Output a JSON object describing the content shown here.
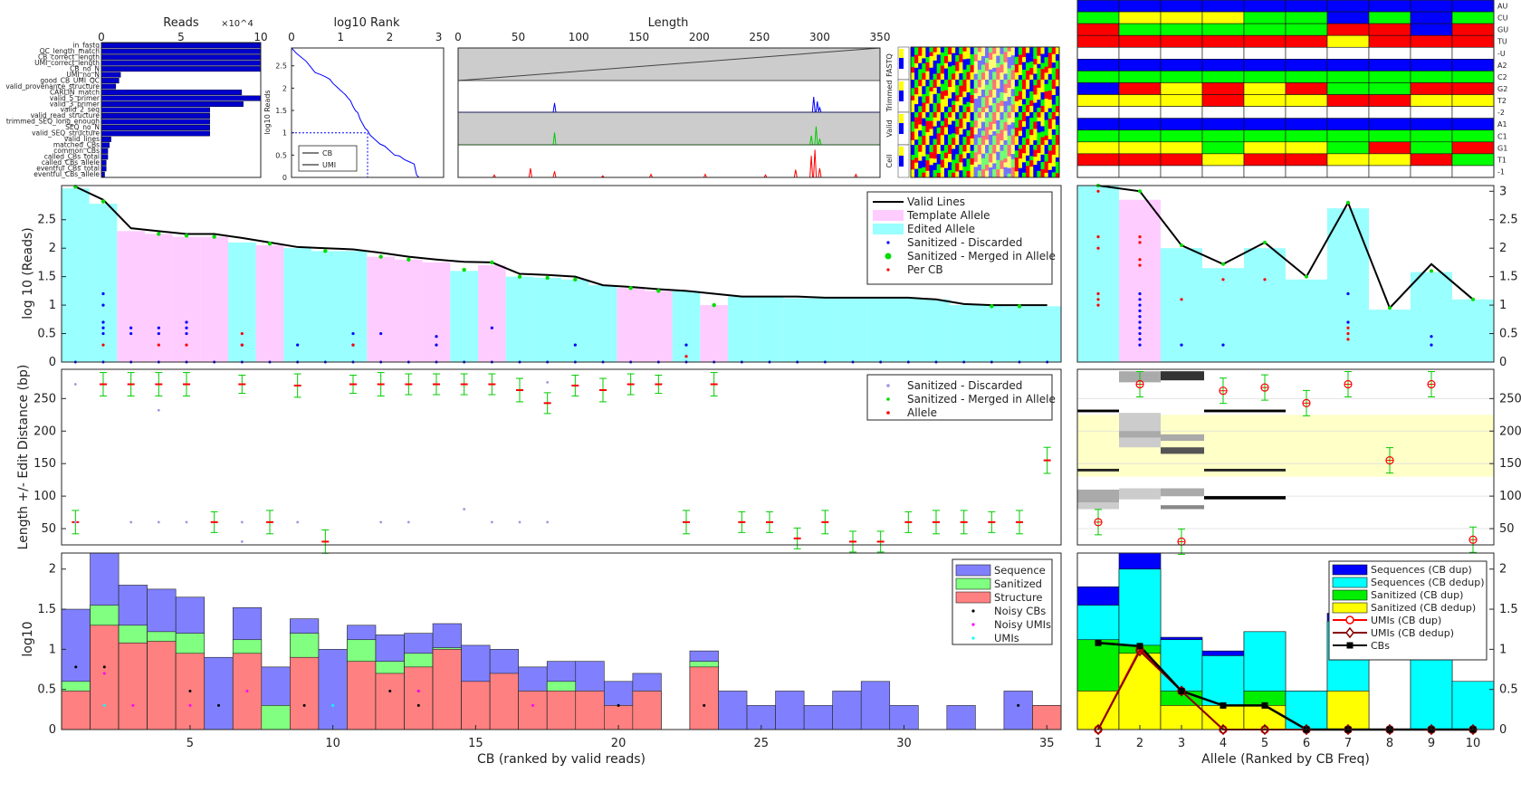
{
  "colors": {
    "cyan": "#99ffff",
    "pink": "#ffccff",
    "navy": "#0000ff",
    "green": "#00ff00",
    "red": "#ff0000",
    "blueBar": "#0000cc",
    "seq": "#8080ff",
    "san": "#80ff80",
    "str": "#ff8080",
    "gray": "#cccccc",
    "yellowBand": "#ffffc8"
  },
  "panel_reads": {
    "title": "Reads",
    "scale": "×10^4",
    "xticks": [
      0,
      5,
      10
    ],
    "xlim": [
      0,
      10
    ],
    "labels": [
      "in_fastq",
      "QC_length_match",
      "CB_correct_length",
      "UMI_correct_length",
      "CB_no_N",
      "UMI_no_N",
      "good_CB_UMI_QC",
      "valid_provenance_structure",
      "CARLIN_match",
      "valid_5_primer",
      "valid_3_primer",
      "valid_2_seq",
      "valid_read_structure",
      "trimmed_SEQ_long_enough",
      "SEQ_no_N",
      "valid_SEQ_structure",
      "valid_lines",
      "matched_CBs",
      "common_CBs",
      "called_CBs_total",
      "called_CBs_allele",
      "eventful_CBs_total",
      "eventful_CBs_allele"
    ],
    "values": [
      10,
      10,
      10,
      10,
      10,
      1.2,
      1.1,
      0.9,
      8.8,
      10,
      8.9,
      6.8,
      6.8,
      6.8,
      6.8,
      6.8,
      0.6,
      0.5,
      0.4,
      0.4,
      0.3,
      0.3,
      0.2
    ]
  },
  "panel_rank": {
    "title": "log10 Rank",
    "ylabel": "log10 Reads",
    "xticks": [
      0,
      1,
      2,
      3
    ],
    "yticks": [
      0,
      0.5,
      1,
      1.5,
      2,
      2.5
    ],
    "xlim": [
      0,
      3.1
    ],
    "ylim": [
      0,
      2.9
    ],
    "legend": [
      "CB",
      "UMI"
    ],
    "cb_x": [
      0,
      0.1,
      0.3,
      0.48,
      0.6,
      0.7,
      0.78,
      0.85,
      0.9,
      0.95,
      1.0,
      1.05,
      1.1,
      1.15,
      1.2,
      1.25,
      1.3,
      1.35,
      1.4,
      1.45,
      1.5,
      1.55,
      1.6,
      1.7,
      1.8,
      1.9,
      2.0,
      2.1,
      2.2,
      2.3,
      2.4,
      2.5,
      2.55,
      2.6,
      2.8,
      3.0
    ],
    "cb_y": [
      2.9,
      2.78,
      2.6,
      2.35,
      2.3,
      2.25,
      2.2,
      2.1,
      2.05,
      2.0,
      1.95,
      1.9,
      1.85,
      1.78,
      1.72,
      1.6,
      1.5,
      1.45,
      1.3,
      1.2,
      1.1,
      1.05,
      0.95,
      0.85,
      0.75,
      0.7,
      0.6,
      0.5,
      0.48,
      0.4,
      0.35,
      0.3,
      0.05,
      0,
      0,
      0
    ],
    "threshold_x": 1.55,
    "threshold_y": 1.0
  },
  "panel_length": {
    "title": "Length",
    "xticks": [
      0,
      50,
      100,
      150,
      200,
      250,
      300,
      350
    ],
    "xlim": [
      0,
      350
    ],
    "side_labels": [
      "FASTQ",
      "Trimmed",
      "Valid",
      "Cell"
    ],
    "spikes_a": [
      [
        80,
        0.3
      ],
      [
        295,
        0.5
      ],
      [
        298,
        0.35
      ],
      [
        300,
        0.15
      ]
    ],
    "spikes_b": [
      [
        80,
        0.4
      ],
      [
        293,
        0.3
      ],
      [
        297,
        0.6
      ],
      [
        300,
        0.2
      ]
    ],
    "spikes_c": [
      [
        30,
        0.08
      ],
      [
        60,
        0.3
      ],
      [
        80,
        0.2
      ],
      [
        120,
        0.05
      ],
      [
        160,
        0.1
      ],
      [
        205,
        0.1
      ],
      [
        255,
        0.08
      ],
      [
        280,
        0.25
      ],
      [
        293,
        0.7
      ],
      [
        296,
        0.9
      ],
      [
        300,
        0.3
      ],
      [
        330,
        0.1
      ]
    ]
  },
  "allele_matrix": {
    "row_labels": [
      "AU",
      "CU",
      "GU",
      "TU",
      "-U",
      "A2",
      "C2",
      "G2",
      "T2",
      "-2",
      "A1",
      "C1",
      "G1",
      "T1",
      "-1"
    ]
  },
  "main_top": {
    "ylabel": "log 10 (Reads)",
    "yticks": [
      0,
      0.5,
      1,
      1.5,
      2,
      2.5
    ],
    "ylim": [
      0,
      3.1
    ],
    "legend": [
      "Valid Lines",
      "Template Allele",
      "Edited Allele",
      "Sanitized - Discarded",
      "Sanitized - Merged in Allele",
      "Per CB"
    ],
    "bar_values": [
      3.05,
      2.78,
      2.3,
      2.25,
      2.2,
      2.2,
      2.1,
      2.05,
      2.0,
      1.95,
      1.95,
      1.85,
      1.8,
      1.75,
      1.6,
      1.7,
      1.5,
      1.48,
      1.45,
      1.35,
      1.3,
      1.25,
      1.25,
      1.0,
      1.15,
      1.15,
      1.12,
      1.12,
      1.12,
      1.12,
      1.12,
      1.1,
      1.0,
      1.0,
      0.98,
      0.98
    ],
    "bar_type": [
      "E",
      "E",
      "T",
      "T",
      "T",
      "T",
      "E",
      "T",
      "E",
      "E",
      "E",
      "T",
      "T",
      "T",
      "E",
      "T",
      "E",
      "E",
      "E",
      "E",
      "T",
      "T",
      "E",
      "T",
      "E",
      "E",
      "E",
      "E",
      "E",
      "E",
      "E",
      "E",
      "E",
      "E",
      "E",
      "E"
    ],
    "valid_line": [
      3.08,
      2.85,
      2.35,
      2.3,
      2.25,
      2.25,
      2.18,
      2.1,
      2.02,
      2.0,
      1.98,
      1.92,
      1.85,
      1.8,
      1.76,
      1.75,
      1.55,
      1.53,
      1.5,
      1.35,
      1.32,
      1.28,
      1.25,
      1.2,
      1.15,
      1.15,
      1.15,
      1.13,
      1.13,
      1.13,
      1.13,
      1.1,
      1.02,
      1.0,
      1.0,
      1.0
    ],
    "merged": [
      [
        1,
        3.08
      ],
      [
        2,
        2.82
      ],
      [
        4,
        2.25
      ],
      [
        5,
        2.22
      ],
      [
        6,
        2.2
      ],
      [
        8,
        2.08
      ],
      [
        10,
        1.95
      ],
      [
        12,
        1.85
      ],
      [
        13,
        1.8
      ],
      [
        15,
        1.62
      ],
      [
        16,
        1.75
      ],
      [
        17,
        1.5
      ],
      [
        18,
        1.48
      ],
      [
        19,
        1.45
      ],
      [
        21,
        1.3
      ],
      [
        22,
        1.25
      ],
      [
        24,
        1.0
      ],
      [
        34,
        0.98
      ],
      [
        35,
        0.98
      ]
    ],
    "discarded": [
      [
        2,
        1.2
      ],
      [
        2,
        1.0
      ],
      [
        2,
        0.7
      ],
      [
        2,
        0.6
      ],
      [
        2,
        0.5
      ],
      [
        3,
        0.6
      ],
      [
        3,
        0.5
      ],
      [
        4,
        0.6
      ],
      [
        4,
        0.5
      ],
      [
        5,
        0.7
      ],
      [
        5,
        0.6
      ],
      [
        5,
        0.5
      ],
      [
        7,
        0.3
      ],
      [
        9,
        0.3
      ],
      [
        11,
        0.5
      ],
      [
        11,
        0.3
      ],
      [
        12,
        0.5
      ],
      [
        14,
        0.45
      ],
      [
        14,
        0.3
      ],
      [
        16,
        0.6
      ],
      [
        19,
        0.3
      ],
      [
        23,
        0.3
      ]
    ],
    "percb": [
      [
        2,
        0.3
      ],
      [
        4,
        0.3
      ],
      [
        5,
        0.3
      ],
      [
        7,
        0.5
      ],
      [
        7,
        0.3
      ],
      [
        11,
        0.3
      ],
      [
        23,
        0.1
      ]
    ]
  },
  "main_mid": {
    "ylabel": "Length +/- Edit Distance (bp)",
    "yticks": [
      50,
      100,
      150,
      200,
      250
    ],
    "ylim": [
      25,
      295
    ],
    "legend": [
      "Sanitized - Discarded",
      "Sanitized - Merged in Allele",
      "Allele"
    ],
    "alleles_high": [
      [
        2,
        272,
        18
      ],
      [
        3,
        272,
        18
      ],
      [
        4,
        272,
        18
      ],
      [
        5,
        272,
        18
      ],
      [
        7,
        272,
        14
      ],
      [
        9,
        270,
        18
      ],
      [
        12,
        272,
        18
      ],
      [
        13,
        272,
        16
      ],
      [
        14,
        272,
        16
      ],
      [
        15,
        272,
        16
      ],
      [
        16,
        272,
        16
      ],
      [
        17,
        263,
        18
      ],
      [
        18,
        243,
        16
      ],
      [
        19,
        270,
        16
      ],
      [
        20,
        263,
        18
      ],
      [
        21,
        272,
        16
      ],
      [
        22,
        272,
        14
      ],
      [
        24,
        272,
        18
      ],
      [
        11,
        272,
        14
      ]
    ],
    "alleles_low": [
      [
        1,
        60,
        18
      ],
      [
        6,
        60,
        16
      ],
      [
        8,
        60,
        18
      ],
      [
        10,
        30,
        18
      ],
      [
        23,
        60,
        18
      ],
      [
        25,
        60,
        16
      ],
      [
        26,
        60,
        16
      ],
      [
        27,
        35,
        16
      ],
      [
        28,
        60,
        18
      ],
      [
        29,
        30,
        16
      ],
      [
        30,
        30,
        16
      ],
      [
        31,
        60,
        16
      ],
      [
        32,
        60,
        18
      ],
      [
        33,
        60,
        18
      ],
      [
        34,
        60,
        16
      ],
      [
        35,
        60,
        18
      ],
      [
        36,
        155,
        20
      ]
    ],
    "discarded": [
      [
        1,
        272
      ],
      [
        4,
        232
      ],
      [
        1,
        60
      ],
      [
        3,
        60
      ],
      [
        4,
        60
      ],
      [
        5,
        60
      ],
      [
        7,
        60
      ],
      [
        7,
        30
      ],
      [
        9,
        60
      ],
      [
        12,
        60
      ],
      [
        13,
        60
      ],
      [
        15,
        80
      ],
      [
        16,
        60
      ],
      [
        17,
        60
      ],
      [
        18,
        60
      ],
      [
        18,
        275
      ]
    ]
  },
  "main_bot": {
    "xlabel": "CB (ranked by valid reads)",
    "ylabel": "log10",
    "xticks": [
      5,
      10,
      15,
      20,
      25,
      30,
      35
    ],
    "yticks": [
      0,
      0.5,
      1,
      1.5,
      2
    ],
    "ylim": [
      0,
      2.2
    ],
    "legend": [
      "Sequence",
      "Sanitized",
      "Structure",
      "Noisy CBs",
      "Noisy UMIs",
      "UMIs"
    ],
    "sequence": [
      1.5,
      2.2,
      1.8,
      1.75,
      1.65,
      0.9,
      1.52,
      0.78,
      1.38,
      1.0,
      1.3,
      1.18,
      1.2,
      1.32,
      1.05,
      1.0,
      0.78,
      0.85,
      0.85,
      0.6,
      0.7,
      0,
      0.98,
      0.48,
      0.3,
      0.48,
      0.3,
      0.48,
      0.6,
      0.3,
      0,
      0.3,
      0,
      0.48,
      0.3
    ],
    "sanitized": [
      0.6,
      1.55,
      1.3,
      1.22,
      1.2,
      0,
      1.12,
      0.3,
      1.2,
      0,
      1.12,
      0.85,
      0.95,
      1.02,
      0,
      0,
      0,
      0.6,
      0,
      0,
      0,
      0,
      0.85,
      0,
      0,
      0,
      0,
      0,
      0,
      0,
      0,
      0,
      0,
      0,
      0
    ],
    "structure": [
      0.48,
      1.3,
      1.08,
      1.1,
      0.95,
      0,
      0.95,
      0,
      0.9,
      0,
      0.85,
      0.7,
      0.78,
      1.0,
      0.6,
      0.7,
      0.48,
      0.48,
      0.48,
      0.3,
      0.48,
      0,
      0.78,
      0,
      0,
      0,
      0,
      0,
      0,
      0,
      0,
      0,
      0,
      0,
      0.3
    ],
    "noisy_cbs": [
      [
        1,
        0.78
      ],
      [
        2,
        0.78
      ],
      [
        5,
        0.48
      ],
      [
        6,
        0.3
      ],
      [
        9,
        0.3
      ],
      [
        12,
        0.48
      ],
      [
        13,
        0.3
      ],
      [
        13,
        0.48
      ],
      [
        20,
        0.3
      ],
      [
        23,
        0.3
      ],
      [
        34,
        0.3
      ]
    ],
    "noisy_umis": [
      [
        2,
        0.7
      ],
      [
        3,
        0.3
      ],
      [
        5,
        0.3
      ],
      [
        7,
        0.48
      ],
      [
        13,
        0.48
      ],
      [
        17,
        0.3
      ]
    ],
    "umis": [
      [
        2,
        0.3
      ],
      [
        10,
        0.3
      ]
    ]
  },
  "right_top": {
    "yticks": [
      0,
      0.5,
      1,
      1.5,
      2,
      2.5,
      3
    ],
    "ylim": [
      0,
      3.1
    ],
    "bar_values": [
      3.1,
      2.85,
      2.0,
      1.65,
      2.0,
      1.45,
      2.7,
      0.92,
      1.58,
      1.1
    ],
    "bar_type": [
      "E",
      "T",
      "E",
      "E",
      "E",
      "E",
      "E",
      "E",
      "E",
      "E"
    ],
    "line": [
      3.1,
      3.0,
      2.05,
      1.72,
      2.1,
      1.5,
      2.8,
      0.95,
      1.72,
      1.1
    ],
    "merged": [
      [
        1,
        3.1
      ],
      [
        2,
        3.0
      ],
      [
        3,
        2.05
      ],
      [
        4,
        1.72
      ],
      [
        5,
        2.1
      ],
      [
        6,
        1.5
      ],
      [
        7,
        2.8
      ],
      [
        8,
        0.95
      ],
      [
        9,
        1.6
      ],
      [
        10,
        1.1
      ]
    ],
    "discarded": [
      [
        2,
        1.2
      ],
      [
        2,
        1.1
      ],
      [
        2,
        1.0
      ],
      [
        2,
        0.9
      ],
      [
        2,
        0.8
      ],
      [
        2,
        0.7
      ],
      [
        2,
        0.6
      ],
      [
        2,
        0.5
      ],
      [
        2,
        0.4
      ],
      [
        2,
        0.3
      ],
      [
        3,
        0.3
      ],
      [
        4,
        0.3
      ],
      [
        7,
        1.2
      ],
      [
        7,
        0.7
      ],
      [
        9,
        0.45
      ],
      [
        9,
        0.3
      ]
    ],
    "percb": [
      [
        1,
        3.0
      ],
      [
        1,
        2.2
      ],
      [
        1,
        2.0
      ],
      [
        1,
        1.2
      ],
      [
        1,
        1.1
      ],
      [
        1,
        1.0
      ],
      [
        2,
        2.2
      ],
      [
        2,
        2.1
      ],
      [
        2,
        1.8
      ],
      [
        2,
        1.7
      ],
      [
        3,
        1.1
      ],
      [
        4,
        1.45
      ],
      [
        5,
        1.45
      ],
      [
        7,
        0.6
      ],
      [
        7,
        0.5
      ],
      [
        7,
        0.4
      ],
      [
        9,
        1.6
      ]
    ]
  },
  "right_mid": {
    "yticks": [
      50,
      100,
      150,
      200,
      250
    ],
    "ylim": [
      25,
      295
    ],
    "circles": [
      [
        1,
        60
      ],
      [
        2,
        272
      ],
      [
        3,
        30
      ],
      [
        4,
        262
      ],
      [
        5,
        267
      ],
      [
        6,
        243
      ],
      [
        7,
        272
      ],
      [
        8,
        155
      ],
      [
        9,
        272
      ],
      [
        10,
        33
      ]
    ]
  },
  "right_bot": {
    "xlabel": "Allele (Ranked by CB Freq)",
    "xticks": [
      1,
      2,
      3,
      4,
      5,
      6,
      7,
      8,
      9,
      10
    ],
    "yticks": [
      0,
      0.5,
      1,
      1.5,
      2
    ],
    "ylim": [
      0,
      2.2
    ],
    "legend": [
      "Sequences (CB dup)",
      "Sequences (CB dedup)",
      "Sanitized (CB dup)",
      "Sanitized (CB dedup)",
      "UMIs (CB dup)",
      "UMIs (CB dedup)",
      "CBs"
    ],
    "seq_dup": [
      1.78,
      2.2,
      1.15,
      0.98,
      1.22,
      0.48,
      1.45,
      0,
      0.9,
      0.6
    ],
    "seq_dedup": [
      1.55,
      2.0,
      1.12,
      0.92,
      1.22,
      0.48,
      1.35,
      0,
      0.9,
      0.6
    ],
    "san_dup": [
      1.12,
      1.05,
      0.48,
      0.3,
      0.48,
      0,
      0,
      0,
      0,
      0
    ],
    "san_dedup": [
      0.48,
      0.95,
      0.3,
      0.3,
      0.3,
      0,
      0.48,
      0,
      0,
      0
    ],
    "umi_dup": [
      0,
      1.0,
      0.48,
      0,
      0,
      0,
      0,
      0,
      0,
      0
    ],
    "umi_dedup": [
      0,
      0.98,
      0.48,
      0,
      0,
      0,
      0,
      0,
      0,
      0
    ],
    "cbs": [
      1.08,
      1.04,
      0.48,
      0.3,
      0.3,
      0,
      0,
      0,
      0,
      0
    ]
  }
}
